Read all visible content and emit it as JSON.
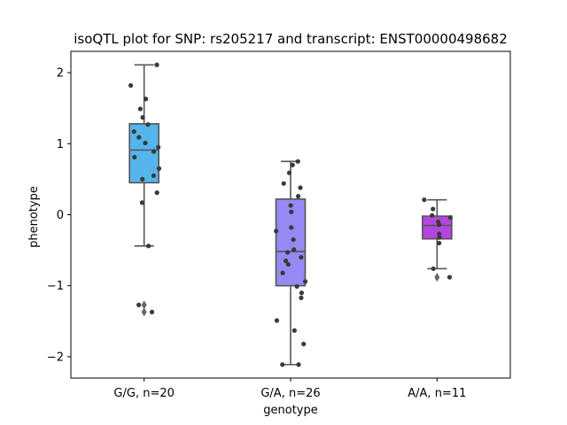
{
  "chart_data": {
    "type": "box",
    "title": "isoQTL plot for SNP: rs205217 and transcript: ENST00000498682",
    "xlabel": "genotype",
    "ylabel": "phenotype",
    "ylim": [
      -2.3,
      2.3
    ],
    "yticks": [
      -2,
      -1,
      0,
      1,
      2
    ],
    "categories": [
      "G/G, n=20",
      "G/A, n=26",
      "A/A, n=11"
    ],
    "colors": {
      "G/G, n=20": "#55b5eb",
      "G/A, n=26": "#958af3",
      "A/A, n=11": "#b446e0",
      "points": "#3a3a3a",
      "box_edge": "#555555"
    },
    "boxes": [
      {
        "category": "G/G, n=20",
        "q1": 0.45,
        "median": 0.91,
        "q3": 1.28,
        "whisker_low": -0.44,
        "whisker_high": 2.11,
        "outliers": [
          -1.27,
          -1.37
        ]
      },
      {
        "category": "G/A, n=26",
        "q1": -1.0,
        "median": -0.52,
        "q3": 0.22,
        "whisker_low": -2.11,
        "whisker_high": 0.75,
        "outliers": []
      },
      {
        "category": "A/A, n=11",
        "q1": -0.34,
        "median": -0.15,
        "q3": -0.02,
        "whisker_low": -0.76,
        "whisker_high": 0.21,
        "outliers": [
          -0.88
        ]
      }
    ],
    "points": [
      {
        "category": "G/G, n=20",
        "values": [
          2.11,
          1.82,
          1.63,
          1.49,
          1.37,
          1.27,
          1.17,
          1.09,
          1.01,
          0.95,
          0.89,
          0.81,
          0.65,
          0.55,
          0.5,
          0.31,
          0.17,
          -0.44,
          -1.27,
          -1.37
        ]
      },
      {
        "category": "G/A, n=26",
        "values": [
          0.75,
          0.7,
          0.59,
          0.44,
          0.38,
          0.26,
          0.13,
          0.04,
          -0.18,
          -0.23,
          -0.35,
          -0.49,
          -0.53,
          -0.6,
          -0.65,
          -0.7,
          -0.82,
          -0.94,
          -1.01,
          -1.1,
          -1.17,
          -1.49,
          -1.63,
          -1.82,
          -2.11,
          -2.11
        ]
      },
      {
        "category": "A/A, n=11",
        "values": [
          0.21,
          0.08,
          -0.01,
          -0.04,
          -0.1,
          -0.14,
          -0.27,
          -0.32,
          -0.4,
          -0.76,
          -0.88
        ]
      }
    ]
  }
}
